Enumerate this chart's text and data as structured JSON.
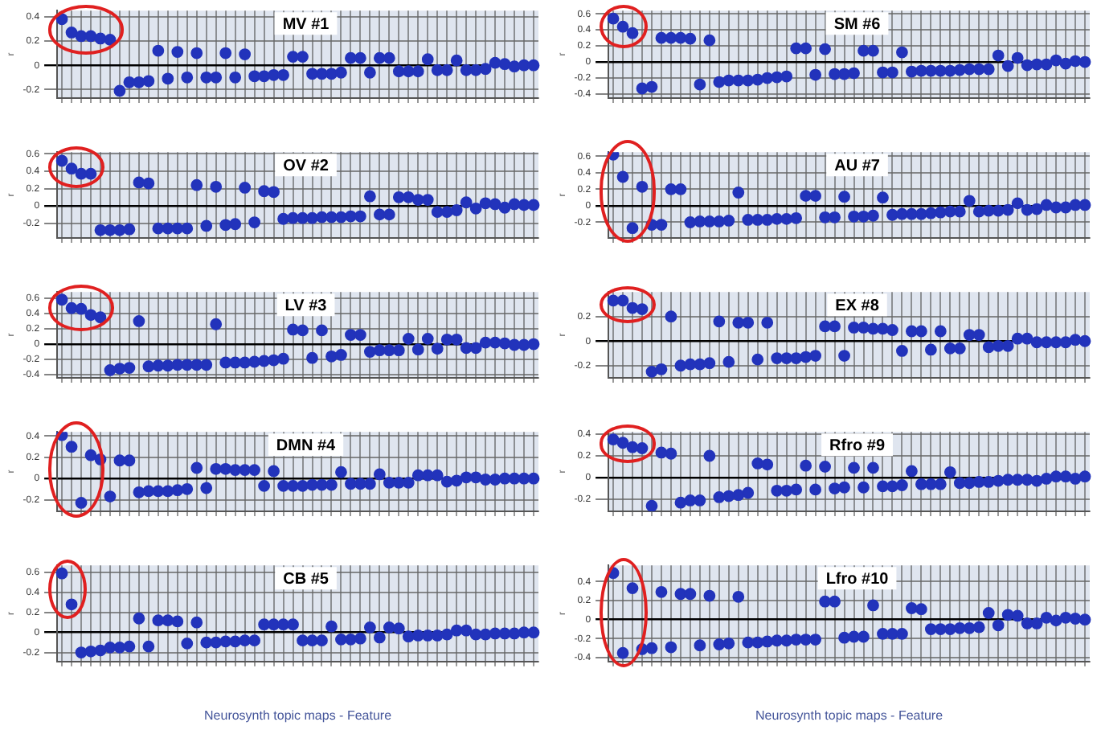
{
  "chart_data": [
    {
      "type": "scatter",
      "title": "MV #1",
      "ylabel": "r",
      "marker": "circle",
      "grid": true,
      "color": "#2233bb",
      "ylim": [
        -0.27,
        0.45
      ],
      "yticks": [
        -0.2,
        0,
        0.2,
        0.4
      ],
      "categories": [
        null,
        null,
        null,
        null,
        null,
        null,
        null,
        null,
        null,
        null,
        null,
        null,
        null,
        null,
        null,
        null,
        null,
        null,
        null,
        null,
        null,
        null,
        null,
        null,
        null,
        null,
        null,
        null,
        null,
        null,
        null,
        null,
        null,
        null,
        null,
        null,
        null,
        null,
        null,
        null,
        null,
        null,
        null,
        null,
        null,
        null,
        null,
        null,
        null,
        null
      ],
      "values": [
        0.38,
        0.27,
        0.24,
        0.24,
        0.22,
        0.21,
        -0.21,
        -0.14,
        -0.14,
        -0.13,
        0.12,
        -0.11,
        0.11,
        -0.1,
        0.1,
        -0.1,
        -0.1,
        0.1,
        -0.1,
        0.09,
        -0.09,
        -0.09,
        -0.08,
        -0.08,
        0.07,
        0.07,
        -0.07,
        -0.07,
        -0.07,
        -0.06,
        0.06,
        0.06,
        -0.06,
        0.06,
        0.06,
        -0.05,
        -0.05,
        -0.05,
        0.05,
        -0.04,
        -0.04,
        0.04,
        -0.04,
        -0.04,
        -0.03,
        0.02,
        0.01,
        -0.01,
        0,
        0
      ]
    },
    {
      "type": "scatter",
      "title": "OV #2",
      "ylabel": "r",
      "marker": "circle",
      "grid": true,
      "color": "#2233bb",
      "ylim": [
        -0.37,
        0.62
      ],
      "yticks": [
        -0.2,
        0,
        0.2,
        0.4,
        0.6
      ],
      "categories": [
        null,
        null,
        null,
        null,
        null,
        null,
        null,
        null,
        null,
        null,
        null,
        null,
        null,
        null,
        null,
        null,
        null,
        null,
        null,
        null,
        null,
        null,
        null,
        null,
        null,
        null,
        null,
        null,
        null,
        null,
        null,
        null,
        null,
        null,
        null,
        null,
        null,
        null,
        null,
        null,
        null,
        null,
        null,
        null,
        null,
        null,
        null,
        null,
        null,
        null
      ],
      "values": [
        0.52,
        0.43,
        0.37,
        0.37,
        -0.28,
        -0.28,
        -0.28,
        -0.27,
        0.27,
        0.26,
        -0.26,
        -0.26,
        -0.26,
        -0.26,
        0.24,
        -0.23,
        0.22,
        -0.22,
        -0.21,
        0.21,
        -0.19,
        0.17,
        0.16,
        -0.15,
        -0.14,
        -0.14,
        -0.14,
        -0.13,
        -0.13,
        -0.13,
        -0.12,
        -0.12,
        0.11,
        -0.1,
        -0.1,
        0.1,
        0.1,
        0.07,
        0.07,
        -0.07,
        -0.07,
        -0.05,
        0.04,
        -0.03,
        0.03,
        0.02,
        -0.02,
        0.02,
        0.01,
        0.01
      ]
    },
    {
      "type": "scatter",
      "title": "LV #3",
      "ylabel": "r",
      "marker": "circle",
      "grid": true,
      "color": "#2233bb",
      "ylim": [
        -0.44,
        0.68
      ],
      "yticks": [
        -0.4,
        -0.2,
        0,
        0.2,
        0.4,
        0.6
      ],
      "categories": [
        null,
        null,
        null,
        null,
        null,
        null,
        null,
        null,
        null,
        null,
        null,
        null,
        null,
        null,
        null,
        null,
        null,
        null,
        null,
        null,
        null,
        null,
        null,
        null,
        null,
        null,
        null,
        null,
        null,
        null,
        null,
        null,
        null,
        null,
        null,
        null,
        null,
        null,
        null,
        null,
        null,
        null,
        null,
        null,
        null,
        null,
        null,
        null,
        null,
        null
      ],
      "values": [
        0.58,
        0.47,
        0.46,
        0.38,
        0.35,
        -0.34,
        -0.32,
        -0.31,
        0.3,
        -0.29,
        -0.28,
        -0.28,
        -0.27,
        -0.27,
        -0.27,
        -0.27,
        0.26,
        -0.24,
        -0.24,
        -0.24,
        -0.23,
        -0.22,
        -0.21,
        -0.19,
        0.19,
        0.18,
        -0.18,
        0.18,
        -0.16,
        -0.14,
        0.12,
        0.12,
        -0.1,
        -0.08,
        -0.08,
        -0.08,
        0.07,
        -0.07,
        0.07,
        -0.06,
        0.06,
        0.06,
        -0.05,
        -0.05,
        0.02,
        0.02,
        0.01,
        -0.01,
        -0.01,
        0
      ]
    },
    {
      "type": "scatter",
      "title": "DMN #4",
      "ylabel": "r",
      "marker": "circle",
      "grid": true,
      "color": "#2233bb",
      "ylim": [
        -0.31,
        0.44
      ],
      "yticks": [
        -0.2,
        0,
        0.2,
        0.4
      ],
      "categories": [
        null,
        null,
        null,
        null,
        null,
        null,
        null,
        null,
        null,
        null,
        null,
        null,
        null,
        null,
        null,
        null,
        null,
        null,
        null,
        null,
        null,
        null,
        null,
        null,
        null,
        null,
        null,
        null,
        null,
        null,
        null,
        null,
        null,
        null,
        null,
        null,
        null,
        null,
        null,
        null,
        null,
        null,
        null,
        null,
        null,
        null,
        null,
        null,
        null,
        null
      ],
      "values": [
        0.41,
        0.3,
        -0.23,
        0.22,
        0.18,
        -0.17,
        0.17,
        0.17,
        -0.13,
        -0.12,
        -0.12,
        -0.12,
        -0.11,
        -0.1,
        0.1,
        -0.09,
        0.09,
        0.09,
        0.08,
        0.08,
        0.08,
        -0.07,
        0.07,
        -0.07,
        -0.07,
        -0.07,
        -0.06,
        -0.06,
        -0.06,
        0.06,
        -0.05,
        -0.05,
        -0.05,
        0.04,
        -0.04,
        -0.04,
        -0.04,
        0.03,
        0.03,
        0.03,
        -0.03,
        -0.02,
        0.01,
        0.01,
        -0.01,
        -0.01,
        0,
        0,
        0,
        0
      ]
    },
    {
      "type": "scatter",
      "title": "CB #5",
      "ylabel": "r",
      "xlabel": "Neurosynth topic maps - Feature",
      "marker": "circle",
      "grid": true,
      "color": "#2233bb",
      "ylim": [
        -0.29,
        0.67
      ],
      "yticks": [
        -0.2,
        0,
        0.2,
        0.4,
        0.6
      ],
      "categories": [
        null,
        null,
        null,
        null,
        null,
        null,
        null,
        null,
        null,
        null,
        null,
        null,
        null,
        null,
        null,
        null,
        null,
        null,
        null,
        null,
        null,
        null,
        null,
        null,
        null,
        null,
        null,
        null,
        null,
        null,
        null,
        null,
        null,
        null,
        null,
        null,
        null,
        null,
        null,
        null,
        null,
        null,
        null,
        null,
        null,
        null,
        null,
        null,
        null,
        null
      ],
      "values": [
        0.59,
        0.28,
        -0.2,
        -0.19,
        -0.18,
        -0.15,
        -0.15,
        -0.14,
        0.14,
        -0.14,
        0.12,
        0.12,
        0.11,
        -0.11,
        0.1,
        -0.1,
        -0.1,
        -0.09,
        -0.09,
        -0.08,
        -0.08,
        0.08,
        0.08,
        0.08,
        0.08,
        -0.08,
        -0.08,
        -0.08,
        0.06,
        -0.07,
        -0.07,
        -0.06,
        0.05,
        -0.05,
        0.05,
        0.04,
        -0.04,
        -0.03,
        -0.03,
        -0.03,
        -0.02,
        0.02,
        0.02,
        -0.02,
        -0.02,
        -0.01,
        -0.01,
        -0.01,
        0,
        0
      ]
    },
    {
      "type": "scatter",
      "title": "SM #6",
      "ylabel": "r",
      "marker": "circle",
      "grid": true,
      "color": "#2233bb",
      "ylim": [
        -0.45,
        0.64
      ],
      "yticks": [
        -0.4,
        -0.2,
        0,
        0.2,
        0.4,
        0.6
      ],
      "categories": [
        null,
        null,
        null,
        null,
        null,
        null,
        null,
        null,
        null,
        null,
        null,
        null,
        null,
        null,
        null,
        null,
        null,
        null,
        null,
        null,
        null,
        null,
        null,
        null,
        null,
        null,
        null,
        null,
        null,
        null,
        null,
        null,
        null,
        null,
        null,
        null,
        null,
        null,
        null,
        null,
        null,
        null,
        null,
        null,
        null,
        null,
        null,
        null,
        null,
        null
      ],
      "values": [
        0.54,
        0.44,
        0.36,
        -0.33,
        -0.31,
        0.3,
        0.3,
        0.3,
        0.29,
        -0.28,
        0.27,
        -0.25,
        -0.23,
        -0.23,
        -0.23,
        -0.22,
        -0.2,
        -0.19,
        -0.18,
        0.17,
        0.17,
        -0.16,
        0.16,
        -0.15,
        -0.15,
        -0.14,
        0.14,
        0.14,
        -0.13,
        -0.13,
        0.12,
        -0.12,
        -0.11,
        -0.11,
        -0.11,
        -0.11,
        -0.1,
        -0.09,
        -0.09,
        -0.09,
        0.08,
        -0.05,
        0.05,
        -0.04,
        -0.03,
        -0.03,
        0.02,
        -0.02,
        0.01,
        0
      ]
    },
    {
      "type": "scatter",
      "title": "AU #7",
      "ylabel": "r",
      "marker": "circle",
      "grid": true,
      "color": "#2233bb",
      "ylim": [
        -0.39,
        0.65
      ],
      "yticks": [
        -0.2,
        0,
        0.2,
        0.4,
        0.6
      ],
      "categories": [
        null,
        null,
        null,
        null,
        null,
        null,
        null,
        null,
        null,
        null,
        null,
        null,
        null,
        null,
        null,
        null,
        null,
        null,
        null,
        null,
        null,
        null,
        null,
        null,
        null,
        null,
        null,
        null,
        null,
        null,
        null,
        null,
        null,
        null,
        null,
        null,
        null,
        null,
        null,
        null,
        null,
        null,
        null,
        null,
        null,
        null,
        null,
        null,
        null,
        null
      ],
      "values": [
        0.62,
        0.35,
        -0.27,
        0.23,
        -0.23,
        -0.23,
        0.2,
        0.2,
        -0.2,
        -0.19,
        -0.19,
        -0.19,
        -0.18,
        0.16,
        -0.17,
        -0.17,
        -0.17,
        -0.16,
        -0.16,
        -0.15,
        0.12,
        0.12,
        -0.14,
        -0.14,
        0.11,
        -0.13,
        -0.13,
        -0.12,
        0.1,
        -0.11,
        -0.1,
        -0.1,
        -0.1,
        -0.09,
        -0.08,
        -0.07,
        -0.07,
        0.06,
        -0.07,
        -0.06,
        -0.06,
        -0.05,
        0.03,
        -0.05,
        -0.04,
        0.01,
        -0.02,
        -0.02,
        0.01,
        0.01
      ]
    },
    {
      "type": "scatter",
      "title": "EX #8",
      "ylabel": "r",
      "marker": "circle",
      "grid": true,
      "color": "#2233bb",
      "ylim": [
        -0.3,
        0.4
      ],
      "yticks": [
        -0.2,
        0,
        0.2
      ],
      "categories": [
        null,
        null,
        null,
        null,
        null,
        null,
        null,
        null,
        null,
        null,
        null,
        null,
        null,
        null,
        null,
        null,
        null,
        null,
        null,
        null,
        null,
        null,
        null,
        null,
        null,
        null,
        null,
        null,
        null,
        null,
        null,
        null,
        null,
        null,
        null,
        null,
        null,
        null,
        null,
        null,
        null,
        null,
        null,
        null,
        null,
        null,
        null,
        null,
        null,
        null
      ],
      "values": [
        0.33,
        0.33,
        0.27,
        0.26,
        -0.25,
        -0.23,
        0.2,
        -0.2,
        -0.19,
        -0.19,
        -0.18,
        0.16,
        -0.17,
        0.15,
        0.15,
        -0.15,
        0.15,
        -0.14,
        -0.14,
        -0.14,
        -0.13,
        -0.12,
        0.12,
        0.12,
        -0.12,
        0.11,
        0.11,
        0.1,
        0.1,
        0.09,
        -0.08,
        0.08,
        0.08,
        -0.07,
        0.08,
        -0.06,
        -0.06,
        0.05,
        0.05,
        -0.05,
        -0.04,
        -0.04,
        0.02,
        0.02,
        -0.01,
        -0.01,
        -0.01,
        -0.01,
        0.01,
        0
      ]
    },
    {
      "type": "scatter",
      "title": "Rfro #9",
      "ylabel": "r",
      "marker": "circle",
      "grid": true,
      "color": "#2233bb",
      "ylim": [
        -0.31,
        0.42
      ],
      "yticks": [
        -0.2,
        0,
        0.2,
        0.4
      ],
      "categories": [
        null,
        null,
        null,
        null,
        null,
        null,
        null,
        null,
        null,
        null,
        null,
        null,
        null,
        null,
        null,
        null,
        null,
        null,
        null,
        null,
        null,
        null,
        null,
        null,
        null,
        null,
        null,
        null,
        null,
        null,
        null,
        null,
        null,
        null,
        null,
        null,
        null,
        null,
        null,
        null,
        null,
        null,
        null,
        null,
        null,
        null,
        null,
        null,
        null,
        null
      ],
      "values": [
        0.35,
        0.32,
        0.28,
        0.27,
        -0.26,
        0.23,
        0.22,
        -0.23,
        -0.21,
        -0.21,
        0.2,
        -0.18,
        -0.17,
        -0.16,
        -0.14,
        0.13,
        0.12,
        -0.12,
        -0.12,
        -0.11,
        0.11,
        -0.11,
        0.1,
        -0.1,
        -0.09,
        0.09,
        -0.09,
        0.09,
        -0.08,
        -0.08,
        -0.07,
        0.06,
        -0.06,
        -0.06,
        -0.06,
        0.05,
        -0.05,
        -0.05,
        -0.04,
        -0.04,
        -0.03,
        -0.02,
        -0.02,
        -0.02,
        -0.03,
        -0.01,
        0.01,
        0.01,
        -0.01,
        0.01
      ]
    },
    {
      "type": "scatter",
      "title": "Lfro #10",
      "ylabel": "r",
      "xlabel": "Neurosynth topic maps - Feature",
      "marker": "circle",
      "grid": true,
      "color": "#2233bb",
      "ylim": [
        -0.44,
        0.57
      ],
      "yticks": [
        -0.4,
        -0.2,
        0,
        0.2,
        0.4
      ],
      "categories": [
        null,
        null,
        null,
        null,
        null,
        null,
        null,
        null,
        null,
        null,
        null,
        null,
        null,
        null,
        null,
        null,
        null,
        null,
        null,
        null,
        null,
        null,
        null,
        null,
        null,
        null,
        null,
        null,
        null,
        null,
        null,
        null,
        null,
        null,
        null,
        null,
        null,
        null,
        null,
        null,
        null,
        null,
        null,
        null,
        null,
        null,
        null,
        null,
        null,
        null
      ],
      "values": [
        0.49,
        -0.35,
        0.33,
        -0.31,
        -0.3,
        0.29,
        -0.29,
        0.27,
        0.27,
        -0.27,
        0.25,
        -0.26,
        -0.25,
        0.24,
        -0.24,
        -0.24,
        -0.23,
        -0.22,
        -0.22,
        -0.21,
        -0.21,
        -0.21,
        0.19,
        0.19,
        -0.19,
        -0.18,
        -0.18,
        0.15,
        -0.15,
        -0.15,
        -0.15,
        0.12,
        0.11,
        -0.1,
        -0.1,
        -0.1,
        -0.09,
        -0.09,
        -0.08,
        0.07,
        -0.06,
        0.05,
        0.04,
        -0.04,
        -0.04,
        0.02,
        -0.01,
        0.02,
        0.01,
        0
      ]
    }
  ]
}
